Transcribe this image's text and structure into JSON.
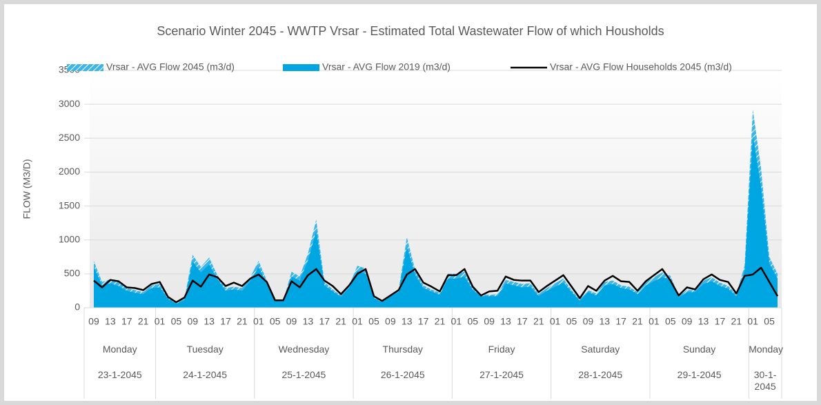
{
  "chart_data": {
    "type": "area",
    "title": "Scenario Winter 2045 - WWTP Vrsar - Estimated Total Wastewater Flow of which Housholds",
    "y_label": "FLOW (M3/D)",
    "legend": "top",
    "grid": true,
    "ylim": [
      0,
      3500
    ],
    "yticks": [
      0,
      500,
      1000,
      1500,
      2000,
      2500,
      3000,
      3500
    ],
    "groups": [
      {
        "day": "Monday",
        "date": "23-1-2045",
        "categories": [
          "09",
          null,
          "13",
          null,
          "17",
          null,
          "21",
          null
        ]
      },
      {
        "day": "Tuesday",
        "date": "24-1-2045",
        "categories": [
          "01",
          null,
          "05",
          null,
          "09",
          null,
          "13",
          null,
          "17",
          null,
          "21",
          null
        ]
      },
      {
        "day": "Wednesday",
        "date": "25-1-2045",
        "categories": [
          "01",
          null,
          "05",
          null,
          "09",
          null,
          "13",
          null,
          "17",
          null,
          "21",
          null
        ]
      },
      {
        "day": "Thursday",
        "date": "26-1-2045",
        "categories": [
          "01",
          null,
          "05",
          null,
          "09",
          null,
          "13",
          null,
          "17",
          null,
          "21",
          null
        ]
      },
      {
        "day": "Friday",
        "date": "27-1-2045",
        "categories": [
          "01",
          null,
          "05",
          null,
          "09",
          null,
          "13",
          null,
          "17",
          null,
          "21",
          null
        ]
      },
      {
        "day": "Saturday",
        "date": "28-1-2045",
        "categories": [
          "01",
          null,
          "05",
          null,
          "09",
          null,
          "13",
          null,
          "17",
          null,
          "21",
          null
        ]
      },
      {
        "day": "Sunday",
        "date": "29-1-2045",
        "categories": [
          "01",
          null,
          "05",
          null,
          "09",
          null,
          "13",
          null,
          "17",
          null,
          "21",
          null
        ]
      },
      {
        "day": "Monday",
        "date": "30-1-2045",
        "categories": [
          "01",
          null,
          "05",
          null
        ]
      }
    ],
    "series": [
      {
        "name": "Vrsar - AVG Flow 2045 (m3/d)",
        "kind": "area",
        "pattern": "hatched",
        "color": "#3db5e8",
        "values": [
          690,
          380,
          420,
          380,
          290,
          260,
          230,
          330,
          350,
          150,
          70,
          130,
          780,
          600,
          740,
          480,
          290,
          310,
          290,
          450,
          690,
          400,
          110,
          100,
          530,
          460,
          800,
          1300,
          380,
          270,
          180,
          330,
          620,
          580,
          160,
          90,
          190,
          260,
          1040,
          560,
          330,
          270,
          220,
          500,
          500,
          530,
          300,
          200,
          190,
          200,
          410,
          380,
          350,
          360,
          200,
          290,
          360,
          430,
          260,
          120,
          260,
          210,
          380,
          400,
          330,
          310,
          230,
          380,
          450,
          520,
          470,
          170,
          260,
          260,
          400,
          450,
          370,
          320,
          200,
          620,
          2920,
          2050,
          750,
          500
        ]
      },
      {
        "name": "Vrsar - AVG Flow 2019 (m3/d)",
        "kind": "area",
        "color": "#00a6e2",
        "values": [
          600,
          330,
          360,
          320,
          250,
          220,
          200,
          290,
          300,
          130,
          60,
          110,
          680,
          520,
          640,
          420,
          250,
          270,
          250,
          390,
          600,
          350,
          100,
          90,
          460,
          400,
          700,
          1130,
          330,
          240,
          160,
          290,
          540,
          500,
          140,
          80,
          170,
          230,
          900,
          490,
          290,
          240,
          190,
          430,
          430,
          460,
          260,
          170,
          170,
          170,
          360,
          330,
          300,
          310,
          170,
          250,
          310,
          370,
          230,
          100,
          230,
          180,
          330,
          350,
          290,
          270,
          200,
          330,
          390,
          450,
          410,
          150,
          230,
          230,
          350,
          390,
          320,
          280,
          170,
          540,
          2540,
          1780,
          650,
          430
        ]
      },
      {
        "name": "Vrsar - AVG Flow Households 2045 (m3/d)",
        "kind": "line",
        "color": "#000000",
        "values": [
          400,
          300,
          410,
          390,
          300,
          290,
          260,
          350,
          380,
          160,
          80,
          150,
          400,
          310,
          490,
          450,
          320,
          370,
          320,
          430,
          490,
          380,
          110,
          110,
          390,
          300,
          480,
          570,
          400,
          320,
          200,
          330,
          500,
          570,
          170,
          100,
          180,
          260,
          490,
          570,
          370,
          310,
          240,
          480,
          480,
          570,
          310,
          180,
          240,
          250,
          460,
          410,
          400,
          400,
          230,
          320,
          400,
          480,
          310,
          140,
          320,
          250,
          400,
          470,
          390,
          380,
          250,
          390,
          480,
          570,
          400,
          180,
          300,
          270,
          420,
          490,
          410,
          380,
          210,
          470,
          490,
          590,
          380,
          170
        ]
      }
    ]
  }
}
